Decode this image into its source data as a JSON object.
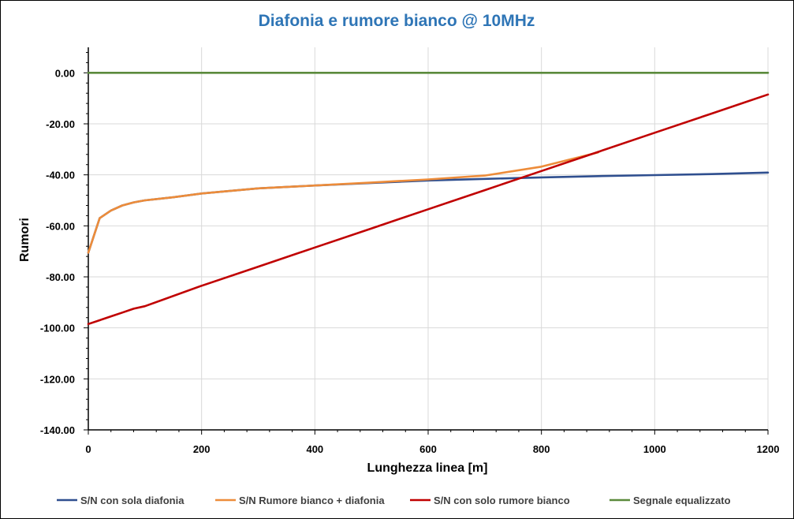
{
  "chart_data": {
    "type": "line",
    "title": "Diafonia e rumore bianco @ 10MHz",
    "title_color": "#2E75B6",
    "xlabel": "Lunghezza linea  [m]",
    "ylabel": "Rumori",
    "xlim": [
      0,
      1200
    ],
    "ylim": [
      -140,
      10
    ],
    "x_ticks": [
      0,
      200,
      400,
      600,
      800,
      1000,
      1200
    ],
    "x_tick_labels": [
      "0",
      "200",
      "400",
      "600",
      "800",
      "1000",
      "1200"
    ],
    "y_ticks": [
      0,
      -20,
      -40,
      -60,
      -80,
      -100,
      -120,
      -140
    ],
    "y_tick_labels": [
      "0.00",
      "-20.00",
      "-40.00",
      "-60.00",
      "-80.00",
      "-100.00",
      "-120.00",
      "-140.00"
    ],
    "grid": true,
    "legend_position": "bottom",
    "series": [
      {
        "name": "S/N con sola diafonia",
        "color": "#2F4F8F",
        "x": [
          0,
          20,
          40,
          60,
          80,
          100,
          150,
          200,
          300,
          400,
          500,
          600,
          700,
          800,
          900,
          1000,
          1100,
          1200
        ],
        "y": [
          -70.5,
          -57,
          -54,
          -52,
          -50.8,
          -50,
          -48.8,
          -47.3,
          -45.3,
          -44.2,
          -43.2,
          -42.2,
          -41.6,
          -41,
          -40.5,
          -40.1,
          -39.7,
          -39.1
        ]
      },
      {
        "name": "S/N Rumore bianco + diafonia",
        "color": "#ED8C3A",
        "x": [
          0,
          20,
          40,
          60,
          80,
          100,
          150,
          200,
          300,
          400,
          500,
          600,
          700,
          800,
          900
        ],
        "y": [
          -70.5,
          -57,
          -54,
          -52,
          -50.8,
          -50,
          -48.8,
          -47.3,
          -45.3,
          -44.2,
          -43,
          -41.8,
          -40.3,
          -36.8,
          -31.2
        ]
      },
      {
        "name": "S/N con solo rumore bianco",
        "color": "#C00000",
        "x": [
          0,
          20,
          40,
          60,
          80,
          100,
          200,
          300,
          400,
          500,
          600,
          700,
          800,
          900,
          1000,
          1100,
          1200
        ],
        "y": [
          -98.5,
          -97,
          -95.5,
          -94,
          -92.5,
          -91.5,
          -83.5,
          -76,
          -68.5,
          -61,
          -53.5,
          -46,
          -38.5,
          -31,
          -23.5,
          -16,
          -8.5
        ]
      },
      {
        "name": "Segnale equalizzato",
        "color": "#5B8A3C",
        "x": [
          0,
          1200
        ],
        "y": [
          0,
          0
        ]
      }
    ]
  }
}
